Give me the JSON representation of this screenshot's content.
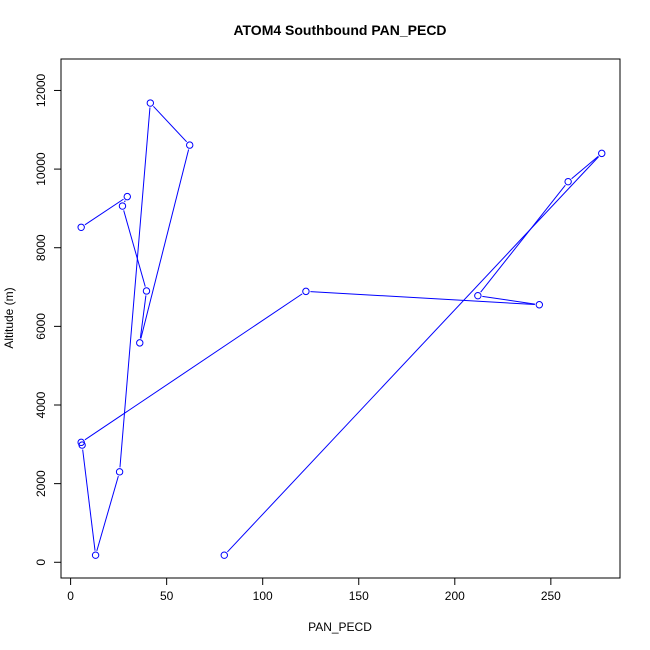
{
  "chart_data": {
    "type": "line",
    "title": "ATOM4 Southbound PAN_PECD",
    "xlabel": "PAN_PECD",
    "ylabel": "Altitude (m)",
    "xlim": [
      -5,
      286
    ],
    "ylim": [
      -400,
      12800
    ],
    "xticks": [
      0,
      50,
      100,
      150,
      200,
      250
    ],
    "yticks": [
      0,
      2000,
      4000,
      6000,
      8000,
      10000,
      12000
    ],
    "color": "#0000ff",
    "marker": "open-circle",
    "grid": false,
    "series": [
      {
        "x": [
          5.5,
          29.5,
          27,
          39.5,
          36,
          62,
          41.5,
          25.5,
          13,
          6,
          5.5,
          122.5,
          244,
          212,
          259,
          276.5,
          80
        ],
        "y": [
          8520,
          9300,
          9060,
          6900,
          5580,
          10610,
          11680,
          2300,
          180,
          2980,
          3050,
          6890,
          6550,
          6780,
          9680,
          10400,
          180
        ]
      }
    ]
  }
}
